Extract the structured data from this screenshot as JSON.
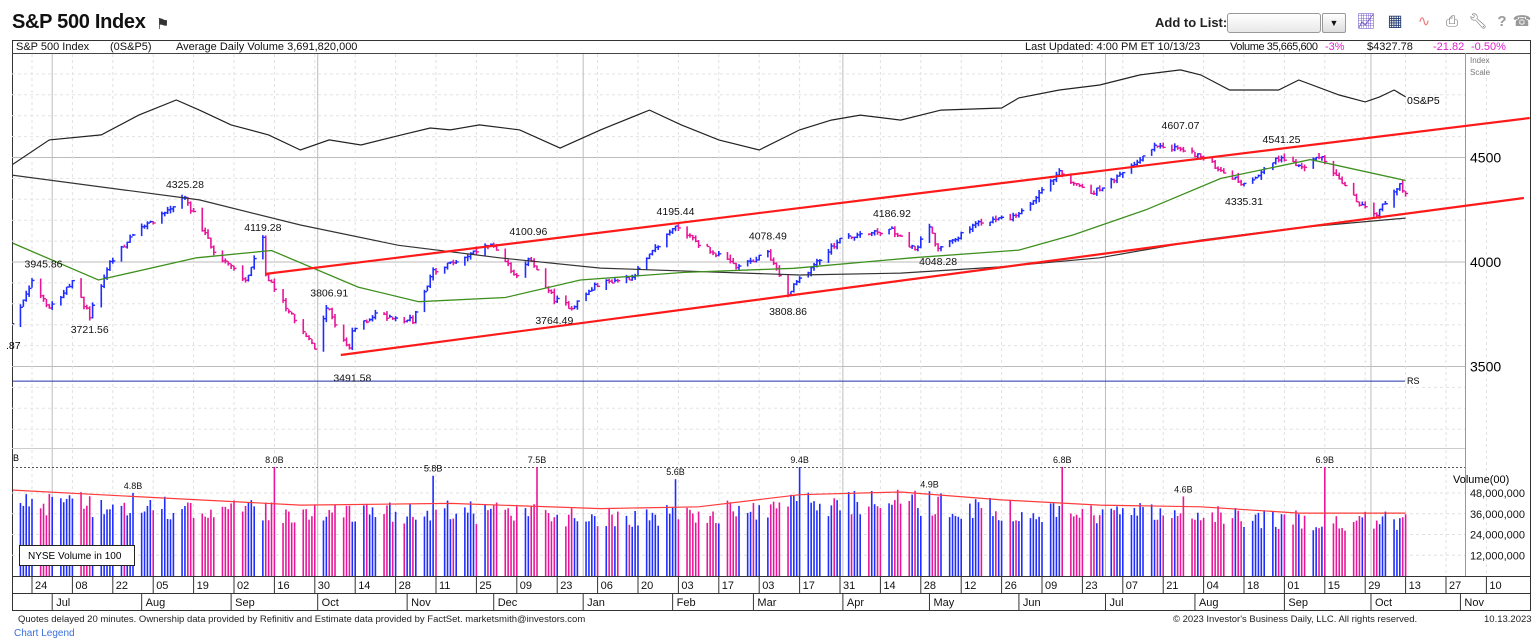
{
  "header": {
    "title": "S&P 500 Index",
    "add_to_list_label": "Add to List:",
    "list_value": "",
    "toolbar_icons": [
      "chart-type-icon",
      "layout-grid-icon",
      "chart-line-icon",
      "print-icon",
      "wrench-settings-icon",
      "help-icon",
      "phone-icon"
    ]
  },
  "info_bar": {
    "name": "S&P 500 Index",
    "symbol": "(0S&P5)",
    "avg_volume": "Average Daily Volume 3,691,820,000",
    "last_updated": "Last Updated: 4:00 PM ET 10/13/23",
    "volume": "Volume 35,665,600",
    "volume_change": "-3%",
    "price": "$4327.78",
    "change": "-21.82",
    "change_pct": "-0.50%"
  },
  "colors": {
    "up": "#1f2dff",
    "down": "#e8179a",
    "ma50": "#3f8f1e",
    "ma200": "#333333",
    "channel": "#ff1a1a",
    "rs": "#222222",
    "rs_baseline": "#2233aa",
    "vol_avg": "#ff3b3b",
    "change_negative": "#e020d0"
  },
  "labels": {
    "index_scale": [
      "Index",
      "Scale"
    ],
    "rs_line_label": "0S&P5",
    "rs_baseline_label": "RS",
    "volume_axis_title": "Volume(00)",
    "volume_box": "NYSE Volume in 100",
    "clipped_left_price": ".87",
    "clipped_left_volume": "B"
  },
  "footer": {
    "disclaimer": "Quotes delayed 20 minutes. Ownership data provided by Refinitiv and Estimate data provided by FactSet. marketsmith@investors.com",
    "copyright": "© 2023 Investor's Business Daily, LLC. All rights reserved.",
    "date": "10.13.2023",
    "legend_link": "Chart Legend"
  },
  "chart_data": {
    "type": "ohlc",
    "scale": "log",
    "price_ylim": [
      3130,
      5005
    ],
    "price_y_ticks": [
      3500,
      4000,
      4500
    ],
    "x_ticks": [
      "2022-06-24",
      "2022-07-08",
      "2022-07-22",
      "2022-08-05",
      "2022-08-19",
      "2022-09-02",
      "2022-09-16",
      "2022-09-30",
      "2022-10-14",
      "2022-10-28",
      "2022-11-11",
      "2022-11-25",
      "2022-12-09",
      "2022-12-23",
      "2023-01-06",
      "2023-01-20",
      "2023-02-03",
      "2023-02-17",
      "2023-03-03",
      "2023-03-17",
      "2023-03-31",
      "2023-04-14",
      "2023-04-28",
      "2023-05-12",
      "2023-05-26",
      "2023-06-09",
      "2023-06-23",
      "2023-07-07",
      "2023-07-21",
      "2023-08-04",
      "2023-08-18",
      "2023-09-01",
      "2023-09-15",
      "2023-09-29",
      "2023-10-13",
      "2023-10-27",
      "2023-11-10"
    ],
    "months": [
      {
        "label": "Jul",
        "date": "2022-07-01"
      },
      {
        "label": "Aug",
        "date": "2022-08-01"
      },
      {
        "label": "Sep",
        "date": "2022-09-01"
      },
      {
        "label": "Oct",
        "date": "2022-10-01"
      },
      {
        "label": "Nov",
        "date": "2022-11-01"
      },
      {
        "label": "Dec",
        "date": "2022-12-01"
      },
      {
        "label": "Jan",
        "date": "2023-01-01"
      },
      {
        "label": "Feb",
        "date": "2023-02-01"
      },
      {
        "label": "Mar",
        "date": "2023-03-01"
      },
      {
        "label": "Apr",
        "date": "2023-04-01"
      },
      {
        "label": "May",
        "date": "2023-05-01"
      },
      {
        "label": "Jun",
        "date": "2023-06-01"
      },
      {
        "label": "Jul",
        "date": "2023-07-01"
      },
      {
        "label": "Aug",
        "date": "2023-08-01"
      },
      {
        "label": "Sep",
        "date": "2023-09-01"
      },
      {
        "label": "Oct",
        "date": "2023-10-01"
      },
      {
        "label": "Nov",
        "date": "2023-11-01"
      }
    ],
    "price_close_path": [
      [
        "2022-06-14",
        3740
      ],
      [
        "2022-06-16",
        3666
      ],
      [
        "2022-06-24",
        3911
      ],
      [
        "2022-06-30",
        3785
      ],
      [
        "2022-07-08",
        3899
      ],
      [
        "2022-07-14",
        3745
      ],
      [
        "2022-07-21",
        3998
      ],
      [
        "2022-07-29",
        4130
      ],
      [
        "2022-08-16",
        4305
      ],
      [
        "2022-08-26",
        4057
      ],
      [
        "2022-09-06",
        3908
      ],
      [
        "2022-09-12",
        4110
      ],
      [
        "2022-09-13",
        3932
      ],
      [
        "2022-09-30",
        3585
      ],
      [
        "2022-10-04",
        3790
      ],
      [
        "2022-10-12",
        3577
      ],
      [
        "2022-10-13",
        3669
      ],
      [
        "2022-10-21",
        3752
      ],
      [
        "2022-11-03",
        3720
      ],
      [
        "2022-11-10",
        3956
      ],
      [
        "2022-11-30",
        4080
      ],
      [
        "2022-12-09",
        3934
      ],
      [
        "2022-12-13",
        4019
      ],
      [
        "2022-12-22",
        3822
      ],
      [
        "2022-12-28",
        3783
      ],
      [
        "2023-01-06",
        3895
      ],
      [
        "2023-01-18",
        3928
      ],
      [
        "2023-02-02",
        4179
      ],
      [
        "2023-02-10",
        4090
      ],
      [
        "2023-02-24",
        3970
      ],
      [
        "2023-03-06",
        4048
      ],
      [
        "2023-03-13",
        3855
      ],
      [
        "2023-03-17",
        3917
      ],
      [
        "2023-03-31",
        4109
      ],
      [
        "2023-04-18",
        4154
      ],
      [
        "2023-04-26",
        4055
      ],
      [
        "2023-05-01",
        4167
      ],
      [
        "2023-05-04",
        4061
      ],
      [
        "2023-05-19",
        4191
      ],
      [
        "2023-06-01",
        4221
      ],
      [
        "2023-06-15",
        4425
      ],
      [
        "2023-06-26",
        4328
      ],
      [
        "2023-07-06",
        4411
      ],
      [
        "2023-07-19",
        4565
      ],
      [
        "2023-07-27",
        4537
      ],
      [
        "2023-08-02",
        4513
      ],
      [
        "2023-08-18",
        4370
      ],
      [
        "2023-08-31",
        4507
      ],
      [
        "2023-09-07",
        4451
      ],
      [
        "2023-09-14",
        4505
      ],
      [
        "2023-09-27",
        4274
      ],
      [
        "2023-10-03",
        4229
      ],
      [
        "2023-10-11",
        4376
      ],
      [
        "2023-10-13",
        4327.78
      ]
    ],
    "price_annotations": [
      {
        "date": "2022-06-28",
        "value": 3945.86,
        "label": "3945.86",
        "position": "above"
      },
      {
        "date": "2022-07-14",
        "value": 3721.56,
        "label": "3721.56",
        "position": "below"
      },
      {
        "date": "2022-08-16",
        "value": 4325.28,
        "label": "4325.28",
        "position": "above"
      },
      {
        "date": "2022-09-12",
        "value": 4119.28,
        "label": "4119.28",
        "position": "above"
      },
      {
        "date": "2022-10-05",
        "value": 3806.91,
        "label": "3806.91",
        "position": "above"
      },
      {
        "date": "2022-10-13",
        "value": 3491.58,
        "label": "3491.58",
        "position": "below"
      },
      {
        "date": "2022-12-13",
        "value": 4100.96,
        "label": "4100.96",
        "position": "above"
      },
      {
        "date": "2022-12-22",
        "value": 3764.49,
        "label": "3764.49",
        "position": "below"
      },
      {
        "date": "2023-02-02",
        "value": 4195.44,
        "label": "4195.44",
        "position": "above"
      },
      {
        "date": "2023-03-06",
        "value": 4078.49,
        "label": "4078.49",
        "position": "above"
      },
      {
        "date": "2023-03-13",
        "value": 3808.86,
        "label": "3808.86",
        "position": "below"
      },
      {
        "date": "2023-04-18",
        "value": 4186.92,
        "label": "4186.92",
        "position": "above"
      },
      {
        "date": "2023-05-04",
        "value": 4048.28,
        "label": "4048.28",
        "position": "below"
      },
      {
        "date": "2023-07-27",
        "value": 4607.07,
        "label": "4607.07",
        "position": "above"
      },
      {
        "date": "2023-08-18",
        "value": 4335.31,
        "label": "4335.31",
        "position": "below"
      },
      {
        "date": "2023-08-31",
        "value": 4541.25,
        "label": "4541.25",
        "position": "above"
      }
    ],
    "ma50": [
      [
        "2022-06-14",
        4110
      ],
      [
        "2022-07-17",
        3914
      ],
      [
        "2022-08-20",
        4020
      ],
      [
        "2022-09-15",
        4055
      ],
      [
        "2022-10-15",
        3880
      ],
      [
        "2022-11-05",
        3810
      ],
      [
        "2022-12-05",
        3830
      ],
      [
        "2022-12-31",
        3914
      ],
      [
        "2023-02-05",
        3950
      ],
      [
        "2023-03-15",
        3970
      ],
      [
        "2023-04-25",
        4020
      ],
      [
        "2023-06-01",
        4057
      ],
      [
        "2023-06-20",
        4130
      ],
      [
        "2023-07-15",
        4250
      ],
      [
        "2023-08-10",
        4400
      ],
      [
        "2023-09-10",
        4490
      ],
      [
        "2023-10-13",
        4390
      ]
    ],
    "ma200": [
      [
        "2022-06-17",
        4416
      ],
      [
        "2022-08-21",
        4297
      ],
      [
        "2022-09-25",
        4177
      ],
      [
        "2022-10-29",
        4080
      ],
      [
        "2022-12-03",
        4020
      ],
      [
        "2023-01-07",
        3971
      ],
      [
        "2023-03-17",
        3938
      ],
      [
        "2023-04-21",
        3947
      ],
      [
        "2023-05-25",
        3976
      ],
      [
        "2023-06-29",
        4020
      ],
      [
        "2023-08-03",
        4105
      ],
      [
        "2023-09-05",
        4163
      ],
      [
        "2023-10-13",
        4210
      ]
    ],
    "channel_upper": [
      [
        "2022-09-13",
        3943
      ],
      [
        "2023-11-25",
        4689
      ]
    ],
    "channel_lower": [
      [
        "2022-10-09",
        3555
      ],
      [
        "2023-11-23",
        4306
      ]
    ],
    "rs_line": [
      [
        "2022-06-17",
        4464
      ],
      [
        "2022-06-30",
        4584
      ],
      [
        "2022-07-18",
        4608
      ],
      [
        "2022-07-31",
        4703
      ],
      [
        "2022-08-13",
        4775
      ],
      [
        "2022-08-21",
        4727
      ],
      [
        "2022-09-01",
        4656
      ],
      [
        "2022-09-14",
        4608
      ],
      [
        "2022-09-25",
        4536
      ],
      [
        "2022-10-05",
        4584
      ],
      [
        "2022-10-16",
        4560
      ],
      [
        "2022-10-30",
        4608
      ],
      [
        "2022-11-09",
        4641
      ],
      [
        "2022-11-16",
        4632
      ],
      [
        "2022-11-26",
        4656
      ],
      [
        "2022-12-10",
        4632
      ],
      [
        "2022-12-24",
        4545
      ],
      [
        "2023-01-07",
        4632
      ],
      [
        "2023-01-24",
        4727
      ],
      [
        "2023-02-04",
        4656
      ],
      [
        "2023-02-17",
        4584
      ],
      [
        "2023-03-03",
        4536
      ],
      [
        "2023-03-17",
        4632
      ],
      [
        "2023-03-28",
        4679
      ],
      [
        "2023-04-07",
        4703
      ],
      [
        "2023-04-21",
        4679
      ],
      [
        "2023-05-05",
        4727
      ],
      [
        "2023-05-26",
        4737
      ],
      [
        "2023-06-01",
        4785
      ],
      [
        "2023-06-15",
        4823
      ],
      [
        "2023-06-29",
        4847
      ],
      [
        "2023-07-13",
        4895
      ],
      [
        "2023-07-27",
        4919
      ],
      [
        "2023-08-03",
        4895
      ],
      [
        "2023-08-13",
        4823
      ],
      [
        "2023-08-30",
        4823
      ],
      [
        "2023-09-06",
        4871
      ],
      [
        "2023-09-20",
        4799
      ],
      [
        "2023-09-29",
        4766
      ],
      [
        "2023-10-04",
        4790
      ],
      [
        "2023-10-09",
        4823
      ],
      [
        "2023-10-13",
        4790
      ]
    ],
    "rs_baseline": 3430,
    "volume_ylim": [
      0,
      63000000
    ],
    "volume_y_ticks": [
      12000000,
      24000000,
      36000000,
      48000000
    ],
    "volume_avg": [
      [
        "2022-06-17",
        49700000
      ],
      [
        "2022-08-21",
        44000000
      ],
      [
        "2022-09-25",
        41000000
      ],
      [
        "2022-11-16",
        42000000
      ],
      [
        "2023-01-07",
        39000000
      ],
      [
        "2023-02-10",
        40000000
      ],
      [
        "2023-03-17",
        47000000
      ],
      [
        "2023-04-21",
        48600000
      ],
      [
        "2023-05-26",
        44000000
      ],
      [
        "2023-06-29",
        41000000
      ],
      [
        "2023-08-03",
        40000000
      ],
      [
        "2023-09-06",
        36400000
      ],
      [
        "2023-10-13",
        36400000
      ]
    ],
    "volume_peaks": [
      {
        "date": "2022-07-29",
        "value": 48000000,
        "label": "4.8B"
      },
      {
        "date": "2022-09-16",
        "value": 80000000,
        "label": "8.0B"
      },
      {
        "date": "2022-11-10",
        "value": 58000000,
        "label": "5.8B"
      },
      {
        "date": "2022-12-16",
        "value": 75000000,
        "label": "7.5B"
      },
      {
        "date": "2023-02-02",
        "value": 56000000,
        "label": "5.6B"
      },
      {
        "date": "2023-03-17",
        "value": 94000000,
        "label": "9.4B"
      },
      {
        "date": "2023-05-01",
        "value": 49000000,
        "label": "4.9B"
      },
      {
        "date": "2023-06-16",
        "value": 68000000,
        "label": "6.8B"
      },
      {
        "date": "2023-07-28",
        "value": 46000000,
        "label": "4.6B"
      },
      {
        "date": "2023-09-15",
        "value": 69000000,
        "label": "6.9B"
      }
    ],
    "last_volume": 35665600
  }
}
